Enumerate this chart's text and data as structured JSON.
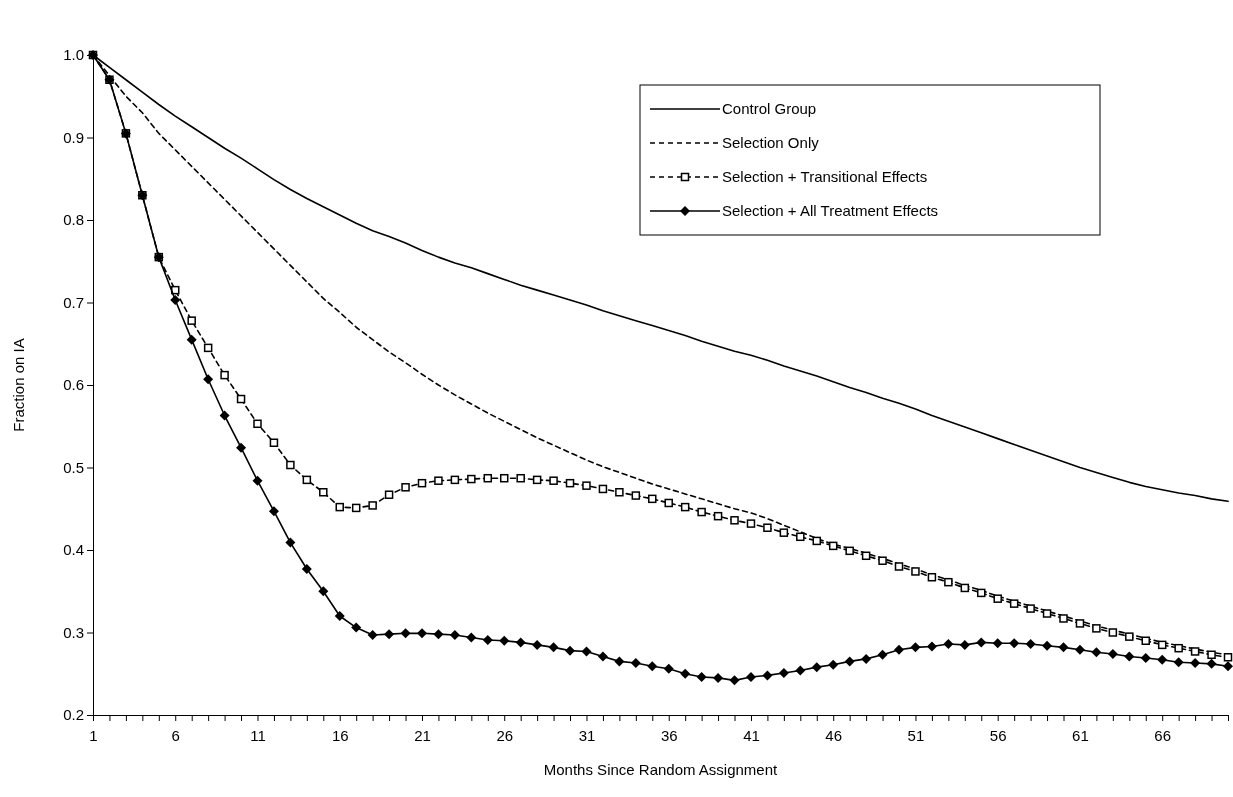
{
  "chart_data": {
    "type": "line",
    "xlabel": "Months Since Random Assignment",
    "ylabel": "Fraction on IA",
    "x": [
      1,
      2,
      3,
      4,
      5,
      6,
      7,
      8,
      9,
      10,
      11,
      12,
      13,
      14,
      15,
      16,
      17,
      18,
      19,
      20,
      21,
      22,
      23,
      24,
      25,
      26,
      27,
      28,
      29,
      30,
      31,
      32,
      33,
      34,
      35,
      36,
      37,
      38,
      39,
      40,
      41,
      42,
      43,
      44,
      45,
      46,
      47,
      48,
      49,
      50,
      51,
      52,
      53,
      54,
      55,
      56,
      57,
      58,
      59,
      60,
      61,
      62,
      63,
      64,
      65,
      66,
      67,
      68,
      69,
      70
    ],
    "xlim": [
      1,
      70
    ],
    "xticks": [
      1,
      {
        "value": 2,
        "label": null
      },
      {
        "value": 3,
        "label": null
      },
      {
        "value": 4,
        "label": null
      },
      {
        "value": 5,
        "label": null
      },
      6,
      {
        "value": 7,
        "label": null
      },
      {
        "value": 8,
        "label": null
      },
      {
        "value": 9,
        "label": null
      },
      {
        "value": 10,
        "label": null
      },
      11,
      {
        "value": 12,
        "label": null
      },
      {
        "value": 13,
        "label": null
      },
      {
        "value": 14,
        "label": null
      },
      {
        "value": 15,
        "label": null
      },
      16,
      {
        "value": 17,
        "label": null
      },
      {
        "value": 18,
        "label": null
      },
      {
        "value": 19,
        "label": null
      },
      {
        "value": 20,
        "label": null
      },
      21,
      {
        "value": 22,
        "label": null
      },
      {
        "value": 23,
        "label": null
      },
      {
        "value": 24,
        "label": null
      },
      {
        "value": 25,
        "label": null
      },
      26,
      {
        "value": 27,
        "label": null
      },
      {
        "value": 28,
        "label": null
      },
      {
        "value": 29,
        "label": null
      },
      {
        "value": 30,
        "label": null
      },
      31,
      {
        "value": 32,
        "label": null
      },
      {
        "value": 33,
        "label": null
      },
      {
        "value": 34,
        "label": null
      },
      {
        "value": 35,
        "label": null
      },
      36,
      {
        "value": 37,
        "label": null
      },
      {
        "value": 38,
        "label": null
      },
      {
        "value": 39,
        "label": null
      },
      {
        "value": 40,
        "label": null
      },
      41,
      {
        "value": 42,
        "label": null
      },
      {
        "value": 43,
        "label": null
      },
      {
        "value": 44,
        "label": null
      },
      {
        "value": 45,
        "label": null
      },
      46,
      {
        "value": 47,
        "label": null
      },
      {
        "value": 48,
        "label": null
      },
      {
        "value": 49,
        "label": null
      },
      {
        "value": 50,
        "label": null
      },
      51,
      {
        "value": 52,
        "label": null
      },
      {
        "value": 53,
        "label": null
      },
      {
        "value": 54,
        "label": null
      },
      {
        "value": 55,
        "label": null
      },
      56,
      {
        "value": 57,
        "label": null
      },
      {
        "value": 58,
        "label": null
      },
      {
        "value": 59,
        "label": null
      },
      {
        "value": 60,
        "label": null
      },
      61,
      {
        "value": 62,
        "label": null
      },
      {
        "value": 63,
        "label": null
      },
      {
        "value": 64,
        "label": null
      },
      {
        "value": 65,
        "label": null
      },
      66,
      {
        "value": 67,
        "label": null
      },
      {
        "value": 68,
        "label": null
      },
      {
        "value": 69,
        "label": null
      },
      {
        "value": 70,
        "label": null
      }
    ],
    "ylim": [
      0.2,
      1.0
    ],
    "yticks": [
      {
        "value": 0.2,
        "label": "0.2"
      },
      {
        "value": 0.3,
        "label": "0.3"
      },
      {
        "value": 0.4,
        "label": "0.4"
      },
      {
        "value": 0.5,
        "label": "0.5"
      },
      {
        "value": 0.6,
        "label": "0.6"
      },
      {
        "value": 0.7,
        "label": "0.7"
      },
      {
        "value": 0.8,
        "label": "0.8"
      },
      {
        "value": 0.9,
        "label": "0.9"
      },
      {
        "value": 1.0,
        "label": "1.0"
      }
    ],
    "legend": "top right",
    "series": [
      {
        "name": "Control Group",
        "color": "#000000",
        "marker": "none",
        "line_style": "solid",
        "values": [
          1.0,
          0.985,
          0.97,
          0.955,
          0.94,
          0.926,
          0.913,
          0.9,
          0.887,
          0.875,
          0.862,
          0.849,
          0.837,
          0.826,
          0.816,
          0.806,
          0.796,
          0.787,
          0.78,
          0.772,
          0.763,
          0.755,
          0.748,
          0.742,
          0.735,
          0.728,
          0.721,
          0.715,
          0.709,
          0.703,
          0.697,
          0.69,
          0.684,
          0.678,
          0.672,
          0.666,
          0.66,
          0.653,
          0.647,
          0.641,
          0.636,
          0.63,
          0.623,
          0.617,
          0.611,
          0.604,
          0.597,
          0.591,
          0.584,
          0.578,
          0.571,
          0.563,
          0.556,
          0.549,
          0.542,
          0.535,
          0.528,
          0.521,
          0.514,
          0.507,
          0.5,
          0.494,
          0.488,
          0.482,
          0.477,
          0.473,
          0.469,
          0.466,
          0.462,
          0.459
        ]
      },
      {
        "name": "Selection Only",
        "color": "#000000",
        "marker": "none",
        "line_style": "dashed",
        "values": [
          1.0,
          0.975,
          0.95,
          0.93,
          0.905,
          0.885,
          0.865,
          0.845,
          0.825,
          0.805,
          0.785,
          0.765,
          0.745,
          0.725,
          0.705,
          0.688,
          0.67,
          0.655,
          0.64,
          0.627,
          0.613,
          0.6,
          0.588,
          0.577,
          0.566,
          0.556,
          0.546,
          0.536,
          0.527,
          0.518,
          0.509,
          0.501,
          0.494,
          0.487,
          0.48,
          0.474,
          0.468,
          0.462,
          0.456,
          0.45,
          0.445,
          0.438,
          0.43,
          0.422,
          0.414,
          0.407,
          0.402,
          0.396,
          0.39,
          0.383,
          0.377,
          0.37,
          0.364,
          0.357,
          0.351,
          0.344,
          0.338,
          0.332,
          0.326,
          0.32,
          0.314,
          0.308,
          0.303,
          0.298,
          0.293,
          0.288,
          0.284,
          0.28,
          0.276,
          0.273
        ]
      },
      {
        "name": "Selection + Transitional Effects",
        "color": "#000000",
        "marker": "square",
        "line_style": "dashed",
        "values": [
          1.0,
          0.97,
          0.905,
          0.83,
          0.755,
          0.715,
          0.678,
          0.645,
          0.612,
          0.583,
          0.553,
          0.53,
          0.503,
          0.485,
          0.47,
          0.452,
          0.451,
          0.454,
          0.467,
          0.476,
          0.481,
          0.484,
          0.485,
          0.486,
          0.487,
          0.487,
          0.487,
          0.485,
          0.484,
          0.481,
          0.478,
          0.474,
          0.47,
          0.466,
          0.462,
          0.457,
          0.452,
          0.446,
          0.441,
          0.436,
          0.432,
          0.427,
          0.421,
          0.416,
          0.411,
          0.405,
          0.399,
          0.393,
          0.387,
          0.38,
          0.374,
          0.367,
          0.361,
          0.354,
          0.348,
          0.341,
          0.335,
          0.329,
          0.323,
          0.317,
          0.311,
          0.305,
          0.3,
          0.295,
          0.29,
          0.285,
          0.281,
          0.277,
          0.273,
          0.27
        ]
      },
      {
        "name": "Selection + All Treatment Effects",
        "color": "#000000",
        "marker": "diamond",
        "line_style": "solid",
        "values": [
          1.0,
          0.97,
          0.905,
          0.83,
          0.755,
          0.703,
          0.655,
          0.607,
          0.563,
          0.524,
          0.484,
          0.447,
          0.409,
          0.377,
          0.35,
          0.32,
          0.306,
          0.297,
          0.298,
          0.299,
          0.299,
          0.298,
          0.297,
          0.294,
          0.291,
          0.29,
          0.288,
          0.285,
          0.282,
          0.278,
          0.277,
          0.271,
          0.265,
          0.263,
          0.259,
          0.256,
          0.25,
          0.246,
          0.245,
          0.242,
          0.246,
          0.248,
          0.251,
          0.254,
          0.258,
          0.261,
          0.265,
          0.268,
          0.273,
          0.279,
          0.282,
          0.283,
          0.286,
          0.285,
          0.288,
          0.287,
          0.287,
          0.286,
          0.284,
          0.282,
          0.279,
          0.276,
          0.274,
          0.271,
          0.269,
          0.267,
          0.264,
          0.263,
          0.262,
          0.259
        ]
      }
    ]
  }
}
